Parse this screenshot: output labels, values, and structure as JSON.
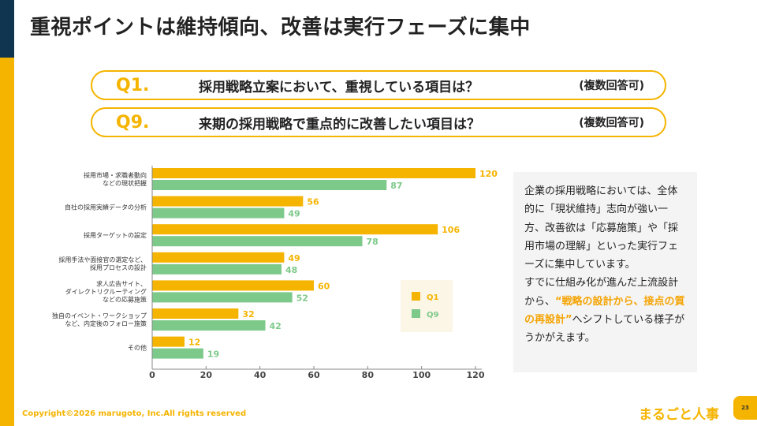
{
  "title": "重視ポイントは維持傾向、改善は実行フェーズに集中",
  "questions": [
    {
      "num": "Q1.",
      "text": "採用戦略立案において、重視している項目は？",
      "note": "(複数回答可)"
    },
    {
      "num": "Q9.",
      "text": "来期の採用戦略で重点的に改善したい項目は？",
      "note": "(複数回答可)"
    }
  ],
  "chart_data": {
    "type": "bar",
    "orientation": "horizontal",
    "categories": [
      [
        "採用市場・求職者動向",
        "などの現状把握"
      ],
      [
        "自社の採用実績データの分析"
      ],
      [
        "採用ターゲットの設定"
      ],
      [
        "採用手法や面接官の選定など、",
        "採用プロセスの設計"
      ],
      [
        "求人広告サイト、",
        "ダイレクトリクルーティング",
        "などの応募施策"
      ],
      [
        "独自のイベント・ワークショップ",
        "など、内定後のフォロー施策"
      ],
      [
        "その他"
      ]
    ],
    "series": [
      {
        "name": "Q1",
        "color": "#f5b400",
        "values": [
          120,
          56,
          106,
          49,
          60,
          32,
          12
        ]
      },
      {
        "name": "Q9",
        "color": "#7dc98a",
        "values": [
          87,
          49,
          78,
          48,
          52,
          42,
          19
        ]
      }
    ],
    "xlim": [
      0,
      120
    ],
    "xticks": [
      "0",
      "20",
      "40",
      "60",
      "80",
      "100",
      "120"
    ],
    "legend": "inside-right",
    "grid": false
  },
  "side": {
    "p1": "企業の採用戦略においては、全体的に「現状維持」志向が強い一方、改善欲は「応募施策」や「採用市場の理解」といった実行フェーズに集中しています。",
    "p2a": "すでに仕組み化が進んだ上流設計から、",
    "p2h": "“戦略の設計から、接点の質の再設計”",
    "p2b": "へシフトしている様子がうかがえます。"
  },
  "footer": {
    "copyright": "Copyright©2026 marugoto, Inc.All rights reserved",
    "logo": "まるごと人事",
    "page": "23"
  }
}
